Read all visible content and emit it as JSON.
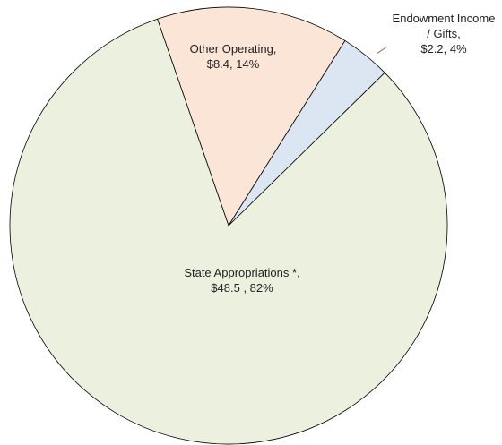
{
  "chart_data": {
    "type": "pie",
    "categories": [
      "Other Operating,",
      "Endowment Income / Gifts,",
      "State Appropriations *,"
    ],
    "values": [
      8.4,
      2.2,
      48.5
    ],
    "value_labels": [
      "$8.4, 14%",
      "$2.2, 4%",
      "$48.5 , 82%"
    ],
    "colors": [
      "#fbe5d6",
      "#dce6f2",
      "#ebf1de"
    ]
  }
}
